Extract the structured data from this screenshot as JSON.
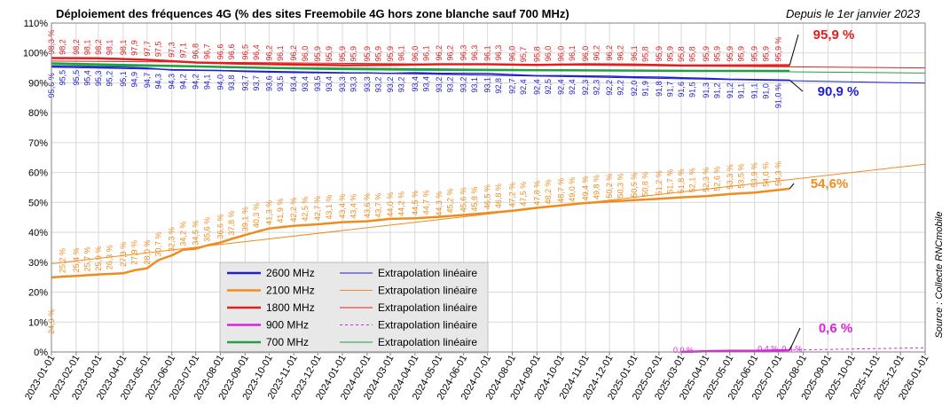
{
  "chart_data": {
    "type": "line",
    "title": "Déploiement des fréquences 4G (% des sites Freemobile 4G hors zone blanche sauf 700 MHz)",
    "subtitle": "Depuis le 1er janvier 2023",
    "source": "Source : Collecte RNCmobile",
    "y_unit": "%",
    "ylim": [
      0,
      110
    ],
    "yticks": [
      "0%",
      "10%",
      "20%",
      "30%",
      "40%",
      "50%",
      "60%",
      "70%",
      "80%",
      "90%",
      "100%",
      "110%"
    ],
    "grid": true,
    "legend_position": "bottom-center",
    "x_axis_type": "date",
    "xlim": [
      "2023-01-01",
      "2026-01-01"
    ],
    "xticks": [
      "2023-01-01",
      "2023-02-01",
      "2023-03-01",
      "2023-04-01",
      "2023-05-01",
      "2023-06-01",
      "2023-07-01",
      "2023-08-01",
      "2023-09-01",
      "2023-10-01",
      "2023-11-01",
      "2023-12-01",
      "2024-01-01",
      "2024-02-01",
      "2024-03-01",
      "2024-04-01",
      "2024-05-01",
      "2024-06-01",
      "2024-07-01",
      "2024-08-01",
      "2024-09-01",
      "2024-10-01",
      "2024-11-01",
      "2024-12-01",
      "2025-01-01",
      "2025-02-01",
      "2025-03-01",
      "2025-04-01",
      "2025-05-01",
      "2025-06-01",
      "2025-07-01",
      "2025-08-01",
      "2025-09-01",
      "2025-10-01",
      "2025-11-01",
      "2025-12-01",
      "2026-01-01"
    ],
    "label_dates": [
      "2023-01-01",
      "2023-01-15",
      "2023-02-01",
      "2023-02-15",
      "2023-03-01",
      "2023-03-15",
      "2023-04-01",
      "2023-04-15",
      "2023-05-01",
      "2023-05-15",
      "2023-06-01",
      "2023-06-15",
      "2023-07-01",
      "2023-07-15",
      "2023-08-01",
      "2023-08-15",
      "2023-09-01",
      "2023-09-15",
      "2023-10-01",
      "2023-10-15",
      "2023-11-01",
      "2023-11-15",
      "2023-12-01",
      "2023-12-15",
      "2024-01-01",
      "2024-01-15",
      "2024-02-01",
      "2024-02-15",
      "2024-03-01",
      "2024-03-15",
      "2024-04-01",
      "2024-04-15",
      "2024-05-01",
      "2024-05-15",
      "2024-06-01",
      "2024-06-15",
      "2024-07-01",
      "2024-07-15",
      "2024-08-01",
      "2024-08-15",
      "2024-09-01",
      "2024-09-15",
      "2024-10-01",
      "2024-10-15",
      "2024-11-01",
      "2024-11-15",
      "2024-12-01",
      "2024-12-15",
      "2025-01-01",
      "2025-01-15",
      "2025-02-01",
      "2025-02-15",
      "2025-03-01",
      "2025-03-15",
      "2025-04-01",
      "2025-04-15",
      "2025-05-01",
      "2025-05-15",
      "2025-06-01",
      "2025-06-15",
      "2025-07-01",
      "2025-07-15"
    ],
    "series": [
      {
        "name": "2600 MHz",
        "color": "#2020d0",
        "line_width": 1.5,
        "dashed": false,
        "x": [
          "2023-01-01",
          "2023-02-01",
          "2023-03-01",
          "2023-04-01",
          "2023-05-01",
          "2023-06-01",
          "2023-07-01",
          "2023-08-01",
          "2023-09-01",
          "2023-10-01",
          "2023-11-01",
          "2023-12-01",
          "2024-01-01",
          "2024-02-01",
          "2024-03-01",
          "2024-04-01",
          "2024-05-01",
          "2024-06-01",
          "2024-07-01",
          "2024-08-01",
          "2024-09-01",
          "2024-10-01",
          "2024-11-01",
          "2024-12-01",
          "2025-01-01",
          "2025-02-01",
          "2025-03-01",
          "2025-04-01",
          "2025-05-01",
          "2025-06-01",
          "2025-07-15"
        ],
        "y": [
          95.6,
          95.5,
          95.3,
          95.2,
          94.9,
          94.3,
          94.2,
          94.1,
          93.8,
          93.6,
          93.5,
          93.4,
          93.3,
          93.3,
          93.2,
          93.4,
          93.2,
          93.2,
          93.1,
          92.7,
          92.4,
          92.4,
          92.3,
          92.2,
          92.0,
          91.9,
          91.7,
          91.5,
          91.2,
          91.1,
          90.9
        ],
        "labels": [
          "95,6 %",
          "95,5",
          "95,5",
          "95,4",
          "95,3",
          "95,2",
          "95,1",
          "94,9",
          "94,7",
          "94,3",
          "94,3",
          "94,2",
          "94,2",
          "94,1",
          "94,0",
          "93,8",
          "93,7",
          "93,7",
          "93,6",
          "93,5",
          "93,4",
          "93,4",
          "93,5",
          "93,4",
          "93,3",
          "93,3",
          "93,3",
          "93,2",
          "93,2",
          "93,2",
          "93,4",
          "93,4",
          "93,2",
          "93,2",
          "93,2",
          "93,1",
          "93,1",
          "92,8",
          "92,7",
          "92,4",
          "92,4",
          "92,5",
          "92,4",
          "92,4",
          "92,3",
          "92,3",
          "92,2",
          "92,2",
          "92,0",
          "91,9",
          "91,8",
          "91,7",
          "91,6",
          "91,5",
          "91,3",
          "91,2",
          "91,2",
          "91,1",
          "91,1",
          "91,0",
          "91,0 %"
        ],
        "final_label": "90,9 %"
      },
      {
        "name": "2100 MHz",
        "color": "#f08c1e",
        "line_width": 2.5,
        "dashed": false,
        "x": [
          "2023-01-01",
          "2023-01-15",
          "2023-02-01",
          "2023-03-01",
          "2023-04-01",
          "2023-04-15",
          "2023-05-01",
          "2023-05-15",
          "2023-06-01",
          "2023-06-15",
          "2023-07-01",
          "2023-07-15",
          "2023-08-01",
          "2023-08-15",
          "2023-09-01",
          "2023-10-01",
          "2023-11-01",
          "2023-12-01",
          "2024-01-01",
          "2024-02-01",
          "2024-03-01",
          "2024-04-01",
          "2024-05-01",
          "2024-06-01",
          "2024-07-01",
          "2024-08-01",
          "2024-09-01",
          "2024-10-01",
          "2024-11-01",
          "2024-12-01",
          "2025-01-01",
          "2025-02-01",
          "2025-03-01",
          "2025-04-01",
          "2025-05-01",
          "2025-06-01",
          "2025-07-15"
        ],
        "y": [
          24.9,
          25.2,
          25.4,
          25.9,
          26.3,
          27.3,
          28.0,
          30.7,
          32.3,
          34.2,
          34.5,
          35.6,
          36.6,
          37.8,
          39.1,
          41.3,
          42.2,
          42.7,
          43.4,
          43.7,
          44.5,
          44.7,
          45.2,
          45.8,
          46.5,
          47.2,
          48.2,
          49.0,
          49.8,
          50.3,
          50.8,
          51.2,
          51.7,
          52.1,
          52.8,
          53.3,
          54.6
        ],
        "labels": [
          "24,9 %",
          "25,2 %",
          "25,4 %",
          "25,7 %",
          "25,9 %",
          "26,3 %",
          "27,3 %",
          "27,9 %",
          "28,0 %",
          "30,7 %",
          "32,3 %",
          "34,2 %",
          "34,5 %",
          "35,6 %",
          "36,6 %",
          "37,8 %",
          "39,1 %",
          "40,3 %",
          "41,3 %",
          "41,9 %",
          "42,2 %",
          "42,5 %",
          "42,7 %",
          "43,1 %",
          "43,4 %",
          "43,4 %",
          "43,6 %",
          "43,7 %",
          "44,0 %",
          "44,2 %",
          "44,5 %",
          "44,7 %",
          "44,3 %",
          "45,2 %",
          "45,6 %",
          "45,8 %",
          "46,5 %",
          "46,8 %",
          "47,2 %",
          "47,5 %",
          "47,8 %",
          "48,2 %",
          "48,7 %",
          "49,0 %",
          "49,4 %",
          "49,8 %",
          "50,2 %",
          "50,3 %",
          "50,5 %",
          "50,8 %",
          "51,2 %",
          "51,7 %",
          "51,8 %",
          "52,1 %",
          "52,3 %",
          "52,6 %",
          "53,3 %",
          "53,5 %",
          "53,9 %",
          "54,0 %",
          "54,3 %"
        ],
        "final_label": "54,6%"
      },
      {
        "name": "1800 MHz",
        "color": "#e02020",
        "line_width": 2.5,
        "dashed": false,
        "x": [
          "2023-01-01",
          "2023-03-01",
          "2023-05-01",
          "2023-07-01",
          "2023-09-01",
          "2023-11-01",
          "2024-01-01",
          "2024-03-01",
          "2024-05-01",
          "2024-07-01",
          "2024-09-01",
          "2024-11-01",
          "2025-01-01",
          "2025-03-01",
          "2025-05-01",
          "2025-07-15"
        ],
        "y": [
          98.3,
          98.2,
          97.7,
          96.8,
          96.4,
          96.1,
          95.9,
          96.0,
          96.2,
          96.2,
          96.0,
          96.2,
          96.1,
          95.8,
          95.8,
          95.9
        ],
        "labels": [
          "98,3 %",
          "98,2",
          "98,2",
          "98,1",
          "98,2",
          "98,1",
          "98,1",
          "97,9",
          "97,7",
          "97,5",
          "97,3",
          "97,1",
          "96,8",
          "96,7",
          "96,6",
          "96,6",
          "96,5",
          "96,4",
          "96,2",
          "96,1",
          "96,2",
          "96,0",
          "95,9",
          "95,9",
          "95,9",
          "95,9",
          "95,9",
          "95,9",
          "95,9",
          "96,1",
          "96,0",
          "96,1",
          "96,2",
          "96,2",
          "96,3",
          "96,3",
          "96,1",
          "96,3",
          "96,0",
          "95,7",
          "95,8",
          "96,0",
          "96,0",
          "96,1",
          "96,0",
          "96,2",
          "96,2",
          "96,2",
          "96,1",
          "95,8",
          "95,9",
          "95,9",
          "95,8",
          "95,8",
          "95,9",
          "95,9",
          "95,9",
          "95,9",
          "95,9",
          "95,9",
          "95,9 %"
        ],
        "final_label": "95,9 %"
      },
      {
        "name": "900 MHz",
        "color": "#e020e0",
        "line_width": 2.5,
        "dashed": false,
        "x": [
          "2025-03-01",
          "2025-04-01",
          "2025-05-01",
          "2025-06-01",
          "2025-07-15"
        ],
        "y": [
          0.0,
          0.2,
          0.4,
          0.4,
          0.6
        ],
        "labels": [
          "0,0 %",
          "0,4 %",
          "0,4 %"
        ],
        "label_dates": [
          "2025-03-01",
          "2025-06-15",
          "2025-07-15"
        ],
        "final_label": "0,6 %"
      },
      {
        "name": "700 MHz",
        "color": "#20a040",
        "line_width": 2.5,
        "dashed": false,
        "x": [
          "2023-01-01",
          "2023-04-01",
          "2023-07-01",
          "2023-10-01",
          "2024-01-01",
          "2024-04-01",
          "2024-07-01",
          "2024-10-01",
          "2025-01-01",
          "2025-04-01",
          "2025-07-15"
        ],
        "y": [
          96.5,
          96.0,
          95.5,
          95.0,
          94.6,
          94.4,
          94.3,
          94.2,
          94.1,
          94.0,
          94.0
        ]
      }
    ],
    "trend_lines": [
      {
        "name": "Extrapolation linéaire",
        "color": "#2020d0",
        "dashed": false,
        "x": [
          "2023-01-01",
          "2026-01-01"
        ],
        "y": [
          95.2,
          89.9
        ]
      },
      {
        "name": "Extrapolation linéaire",
        "color": "#f08c1e",
        "dashed": false,
        "x": [
          "2023-01-01",
          "2026-01-01"
        ],
        "y": [
          29.5,
          62.8
        ]
      },
      {
        "name": "Extrapolation linéaire",
        "color": "#e02020",
        "dashed": false,
        "x": [
          "2023-01-01",
          "2026-01-01"
        ],
        "y": [
          97.3,
          95.0
        ]
      },
      {
        "name": "Extrapolation linéaire",
        "color": "#e020e0",
        "dashed": true,
        "x": [
          "2025-03-01",
          "2026-01-01"
        ],
        "y": [
          0.0,
          1.4
        ]
      },
      {
        "name": "Extrapolation linéaire",
        "color": "#20a040",
        "dashed": false,
        "x": [
          "2023-01-01",
          "2026-01-01"
        ],
        "y": [
          95.8,
          93.3
        ]
      }
    ],
    "legend": {
      "entries": [
        {
          "label": "2600 MHz",
          "color": "#2020d0",
          "width": 2.5,
          "dashed": false,
          "trend_label": "Extrapolation linéaire"
        },
        {
          "label": "2100 MHz",
          "color": "#f08c1e",
          "width": 2.5,
          "dashed": false,
          "trend_label": "Extrapolation linéaire"
        },
        {
          "label": "1800 MHz",
          "color": "#e02020",
          "width": 2.5,
          "dashed": false,
          "trend_label": "Extrapolation linéaire"
        },
        {
          "label": "900 MHz",
          "color": "#e020e0",
          "width": 2.5,
          "dashed": true,
          "trend_label": "Extrapolation linéaire"
        },
        {
          "label": "700 MHz",
          "color": "#20a040",
          "width": 2.5,
          "dashed": false,
          "trend_label": "Extrapolation linéaire"
        }
      ]
    }
  }
}
